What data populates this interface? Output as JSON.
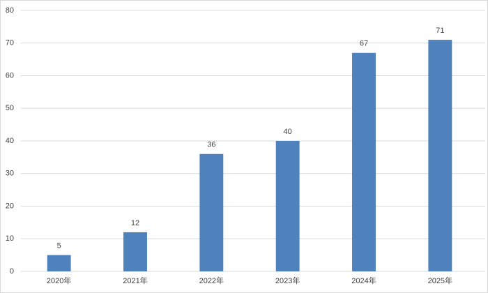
{
  "chart_data": {
    "type": "bar",
    "categories": [
      "2020年",
      "2021年",
      "2022年",
      "2023年",
      "2024年",
      "2025年"
    ],
    "values": [
      5,
      12,
      36,
      40,
      67,
      71
    ],
    "color": "#4f81bd",
    "ylim": [
      0,
      80
    ],
    "yticks": [
      0,
      10,
      20,
      30,
      40,
      50,
      60,
      70,
      80
    ],
    "grid": true
  }
}
